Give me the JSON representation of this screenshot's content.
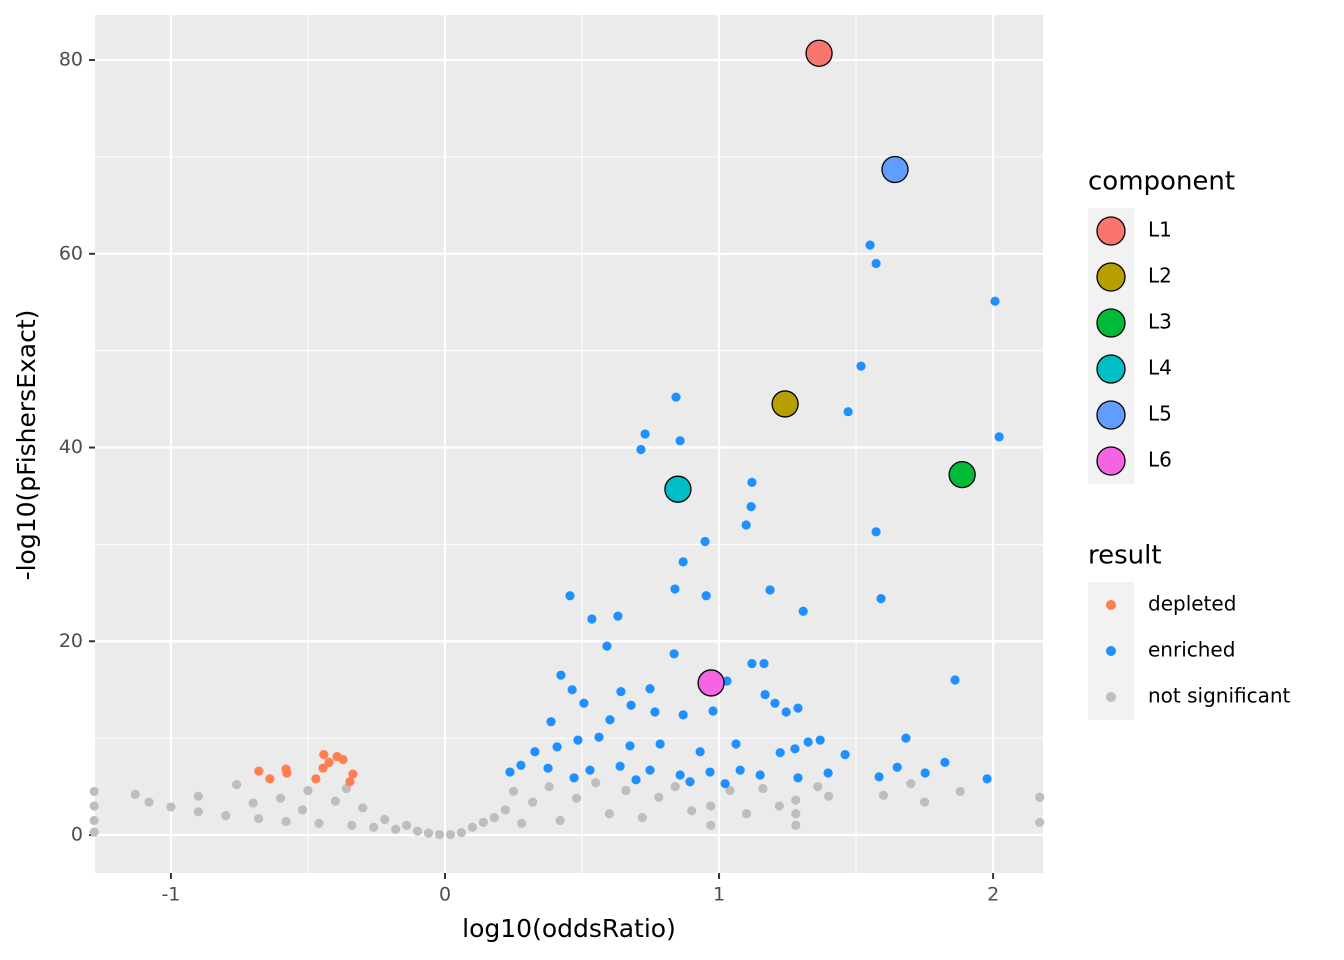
{
  "chart_data": {
    "type": "scatter",
    "xlabel": "log10(oddsRatio)",
    "ylabel": "-log10(pFishersExact)",
    "xlim": [
      -1.277,
      2.182
    ],
    "ylim": [
      -3.92,
      84.65
    ],
    "xticks": [
      -1,
      0,
      1,
      2
    ],
    "yticks": [
      0,
      20,
      40,
      60,
      80
    ],
    "grid": true,
    "groups": [
      {
        "title": "component",
        "series": [
          {
            "name": "L1",
            "color": "#F8766D",
            "x": [
              1.365
            ],
            "y": [
              80.7
            ]
          },
          {
            "name": "L2",
            "color": "#B79F00",
            "x": [
              1.241
            ],
            "y": [
              44.5
            ]
          },
          {
            "name": "L3",
            "color": "#00BA38",
            "x": [
              1.887
            ],
            "y": [
              37.2
            ]
          },
          {
            "name": "L4",
            "color": "#00BFC4",
            "x": [
              0.85
            ],
            "y": [
              35.7
            ]
          },
          {
            "name": "L5",
            "color": "#619CFF",
            "x": [
              1.642
            ],
            "y": [
              68.7
            ]
          },
          {
            "name": "L6",
            "color": "#F564E3",
            "x": [
              0.971
            ],
            "y": [
              15.7
            ]
          }
        ]
      },
      {
        "title": "result",
        "series": [
          {
            "name": "depleted",
            "color": "#FF7F50",
            "x": [
              -0.679,
              -0.639,
              -0.58,
              -0.577,
              -0.442,
              -0.394,
              -0.372,
              -0.336,
              -0.471,
              -0.445,
              -0.347,
              -0.423
            ],
            "y": [
              6.6,
              5.8,
              6.8,
              6.4,
              8.3,
              8.1,
              7.8,
              6.3,
              5.8,
              6.9,
              5.5,
              7.5
            ]
          },
          {
            "name": "enriched",
            "color": "#1E90FF",
            "x": [
              1.551,
              1.573,
              2.007,
              1.518,
              1.471,
              2.022,
              0.843,
              0.73,
              0.715,
              0.858,
              1.12,
              1.117,
              1.099,
              1.573,
              0.949,
              0.869,
              0.456,
              0.536,
              0.631,
              0.591,
              0.839,
              0.953,
              1.186,
              1.307,
              1.591,
              0.836,
              1.861,
              0.423,
              1.12,
              1.164,
              1.029,
              0.464,
              0.507,
              0.642,
              0.748,
              1.168,
              1.204,
              1.245,
              1.288,
              0.679,
              0.766,
              0.869,
              0.978,
              0.387,
              0.602,
              1.682,
              1.824,
              1.978,
              1.752,
              1.65,
              1.584,
              1.46,
              1.369,
              1.325,
              1.277,
              1.223,
              1.062,
              0.931,
              0.785,
              0.675,
              0.562,
              0.485,
              0.409,
              0.328,
              0.277,
              0.237,
              0.376,
              0.529,
              0.639,
              0.748,
              0.858,
              0.967,
              1.077,
              1.15,
              1.288,
              1.398,
              0.471,
              0.697,
              0.894,
              1.022
            ],
            "y": [
              60.9,
              59.0,
              55.1,
              48.4,
              43.7,
              41.1,
              45.2,
              41.4,
              39.8,
              40.7,
              36.4,
              33.9,
              32.0,
              31.3,
              30.3,
              28.2,
              24.7,
              22.3,
              22.6,
              19.5,
              25.4,
              24.7,
              25.3,
              23.1,
              24.4,
              18.7,
              16.0,
              16.5,
              17.7,
              17.7,
              15.9,
              15.0,
              13.6,
              14.8,
              15.1,
              14.5,
              13.6,
              12.7,
              13.1,
              13.4,
              12.7,
              12.4,
              12.8,
              11.7,
              11.9,
              10.0,
              7.5,
              5.8,
              6.4,
              7.0,
              6.0,
              8.3,
              9.8,
              9.6,
              8.9,
              8.5,
              9.4,
              8.6,
              9.4,
              9.2,
              10.1,
              9.8,
              9.1,
              8.6,
              7.2,
              6.5,
              6.9,
              6.7,
              7.1,
              6.7,
              6.2,
              6.5,
              6.7,
              6.2,
              5.9,
              6.4,
              5.9,
              5.7,
              5.5,
              5.3
            ]
          },
          {
            "name": "not significant",
            "color": "#BEBEBE",
            "x": [
              -1.28,
              -1.28,
              -1.28,
              -1.28,
              -1.13,
              -1.08,
              -1.0,
              -0.9,
              -0.9,
              -0.8,
              -0.76,
              -0.7,
              -0.68,
              -0.6,
              -0.58,
              -0.52,
              -0.5,
              -0.46,
              -0.4,
              -0.36,
              -0.34,
              -0.3,
              -0.26,
              -0.22,
              -0.18,
              -0.14,
              -0.1,
              -0.06,
              -0.02,
              0.02,
              0.06,
              0.1,
              0.14,
              0.18,
              0.22,
              0.25,
              0.28,
              0.32,
              0.38,
              0.42,
              0.48,
              0.55,
              0.6,
              0.66,
              0.72,
              0.78,
              0.84,
              0.9,
              0.97,
              0.97,
              1.04,
              1.1,
              1.16,
              1.22,
              1.28,
              1.28,
              1.28,
              1.36,
              1.4,
              1.6,
              1.7,
              1.75,
              1.88,
              2.17,
              2.17
            ],
            "y": [
              0.3,
              1.5,
              3,
              4.5,
              4.2,
              3.4,
              2.9,
              4.0,
              2.4,
              2.0,
              5.2,
              3.3,
              1.7,
              3.8,
              1.4,
              2.6,
              4.6,
              1.2,
              3.5,
              4.8,
              1.0,
              2.8,
              0.8,
              1.6,
              0.6,
              1.0,
              0.4,
              0.2,
              0.05,
              0.05,
              0.25,
              0.8,
              1.3,
              1.8,
              2.6,
              4.5,
              1.2,
              3.4,
              5.0,
              1.5,
              3.8,
              5.4,
              2.2,
              4.6,
              1.8,
              3.9,
              5.0,
              2.5,
              1.0,
              3.0,
              4.6,
              2.2,
              4.8,
              3.0,
              1.0,
              2.2,
              3.6,
              5.0,
              4.0,
              4.1,
              5.3,
              3.4,
              4.5,
              3.9,
              1.3
            ]
          }
        ]
      }
    ]
  }
}
